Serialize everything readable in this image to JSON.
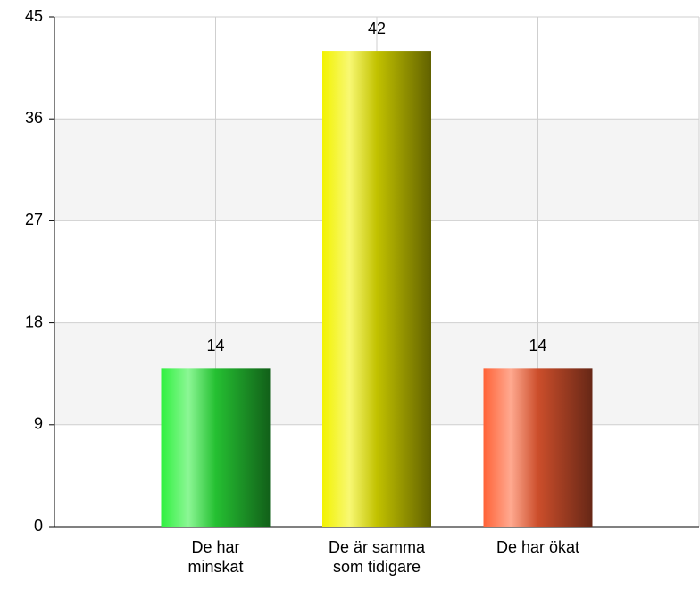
{
  "chart_data": {
    "type": "bar",
    "categories": [
      "De har minskat",
      "De är samma som tidigare",
      "De har ökat"
    ],
    "values": [
      14,
      42,
      14
    ],
    "colors": [
      "#2ef03e",
      "#f2f200",
      "#ff6236"
    ],
    "ylim": [
      0,
      45
    ],
    "yticks": [
      0,
      9,
      18,
      27,
      36,
      45
    ],
    "grid": true
  }
}
